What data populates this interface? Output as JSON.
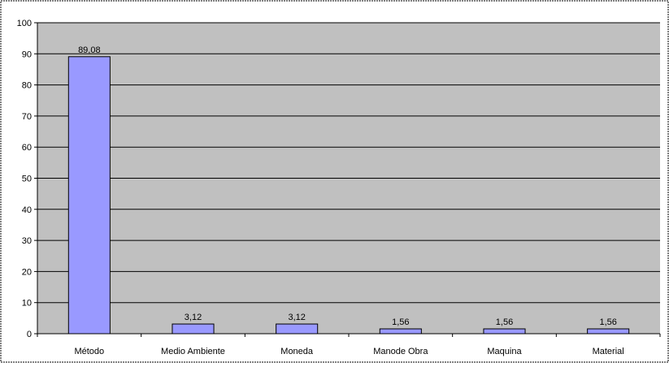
{
  "chart_data": {
    "type": "bar",
    "title": "",
    "xlabel": "",
    "ylabel": "",
    "categories": [
      "Método",
      "Medio Ambiente",
      "Moneda",
      "Manode Obra",
      "Maquina",
      "Material"
    ],
    "values": [
      89.08,
      3.12,
      3.12,
      1.56,
      1.56,
      1.56
    ],
    "data_labels": [
      "89,08",
      "3,12",
      "3,12",
      "1,56",
      "1,56",
      "1,56"
    ],
    "ylim": [
      0,
      100
    ],
    "yticks": [
      0,
      10,
      20,
      30,
      40,
      50,
      60,
      70,
      80,
      90,
      100
    ],
    "grid": true,
    "legend": "none",
    "colors": {
      "bar_fill": "#9999ff",
      "bar_stroke": "#000000",
      "plot_background": "#c0c0c0",
      "gridline": "#000000"
    }
  }
}
